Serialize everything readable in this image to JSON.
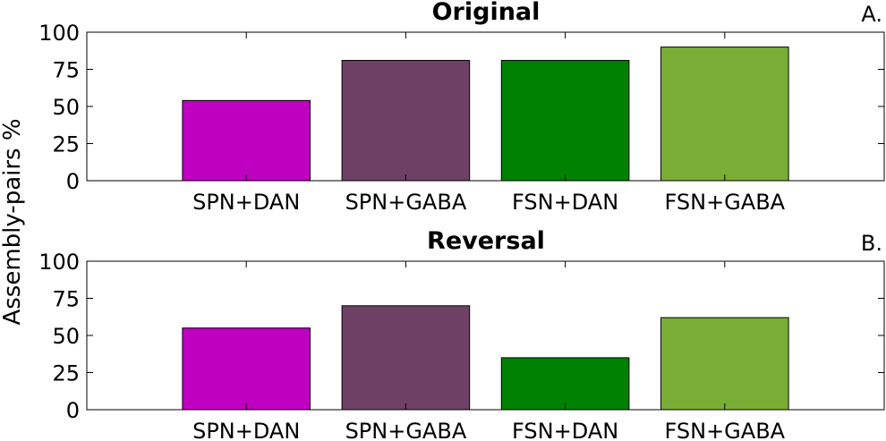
{
  "ylabel": "Assembly-pairs %",
  "colors": [
    "#c000c0",
    "#6e4066",
    "#008000",
    "#7aad35"
  ],
  "chart_data": [
    {
      "type": "bar",
      "title": "Original",
      "panel_label": "A.",
      "categories": [
        "SPN+DAN",
        "SPN+GABA",
        "FSN+DAN",
        "FSN+GABA"
      ],
      "values": [
        54,
        81,
        81,
        90
      ],
      "ylim": [
        0,
        100
      ],
      "yticks": [
        "0",
        "25",
        "50",
        "75",
        "100"
      ],
      "xlim": [
        0,
        5
      ],
      "grid": false
    },
    {
      "type": "bar",
      "title": "Reversal",
      "panel_label": "B.",
      "categories": [
        "SPN+DAN",
        "SPN+GABA",
        "FSN+DAN",
        "FSN+GABA"
      ],
      "values": [
        55,
        70,
        35,
        62
      ],
      "ylim": [
        0,
        100
      ],
      "yticks": [
        "0",
        "25",
        "50",
        "75",
        "100"
      ],
      "xlim": [
        0,
        5
      ],
      "grid": false
    }
  ]
}
